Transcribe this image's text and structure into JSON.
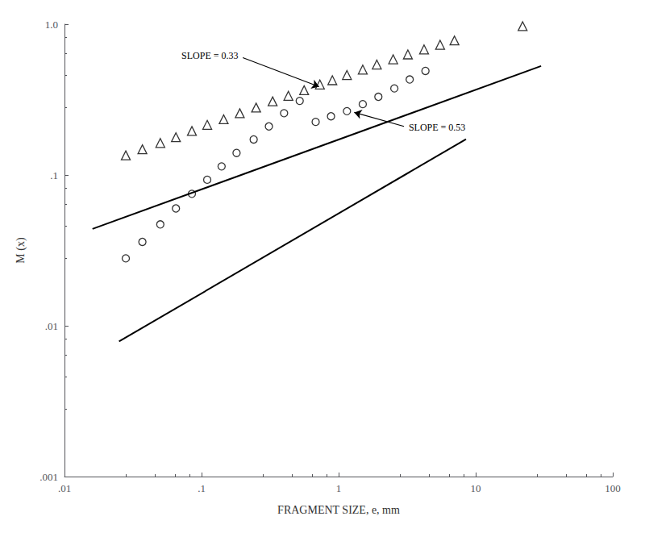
{
  "chart_data": {
    "type": "scatter",
    "xlabel": "FRAGMENT SIZE, e, mm",
    "ylabel": "M (x)",
    "log": true,
    "grid": false,
    "xlim": [
      0.01,
      100
    ],
    "ylim": [
      0.001,
      1.0
    ],
    "xticks": [
      {
        "value": 0.01,
        "label": ".01"
      },
      {
        "value": 0.1,
        "label": ".1"
      },
      1,
      10,
      100
    ],
    "yticks": [
      {
        "value": 0.001,
        "label": ".001"
      },
      {
        "value": 0.01,
        "label": ".01"
      },
      {
        "value": 0.1,
        "label": ".1"
      },
      {
        "value": 1.0,
        "label": "1.0"
      }
    ],
    "series": [
      {
        "type": "scatter",
        "marker": "triangle",
        "color": "black",
        "x": [
          0.028,
          0.037,
          0.05,
          0.065,
          0.085,
          0.11,
          0.145,
          0.19,
          0.25,
          0.33,
          0.43,
          0.56,
          0.73,
          0.9,
          1.15,
          1.5,
          1.9,
          2.5,
          3.2,
          4.2,
          5.5,
          7.0,
          22.0
        ],
        "values": [
          0.135,
          0.148,
          0.163,
          0.178,
          0.196,
          0.215,
          0.234,
          0.257,
          0.28,
          0.308,
          0.335,
          0.365,
          0.398,
          0.425,
          0.46,
          0.5,
          0.54,
          0.585,
          0.63,
          0.68,
          0.73,
          0.78,
          0.97
        ]
      },
      {
        "type": "scatter",
        "marker": "circle",
        "color": "black",
        "x": [
          0.028,
          0.037,
          0.05,
          0.065,
          0.085,
          0.11,
          0.14,
          0.18,
          0.24,
          0.31,
          0.4,
          0.52,
          0.68,
          0.88,
          1.15,
          1.5,
          1.95,
          2.55,
          3.3,
          4.3
        ],
        "values": [
          0.028,
          0.036,
          0.047,
          0.06,
          0.075,
          0.093,
          0.114,
          0.14,
          0.172,
          0.21,
          0.257,
          0.31,
          0.225,
          0.245,
          0.265,
          0.295,
          0.33,
          0.375,
          0.43,
          0.49
        ]
      },
      {
        "type": "line",
        "line_style": "solid",
        "color": "black",
        "x": [
          0.016,
          30.0
        ],
        "values": [
          0.04389,
          0.5278
        ]
      },
      {
        "type": "line",
        "line_style": "solid",
        "color": "black",
        "x": [
          0.025,
          8.5
        ],
        "values": [
          0.007869,
          0.1728
        ]
      }
    ],
    "annotations": [
      {
        "text": "SLOPE = 0.33",
        "xy": [
          0.72,
          0.385
        ],
        "xytext": [
          0.2,
          0.6
        ],
        "series": 2
      },
      {
        "text": "SLOPE = 0.53",
        "xy": [
          1.3,
          0.26
        ],
        "xytext": [
          3.0,
          0.21
        ],
        "series": 3
      }
    ]
  }
}
